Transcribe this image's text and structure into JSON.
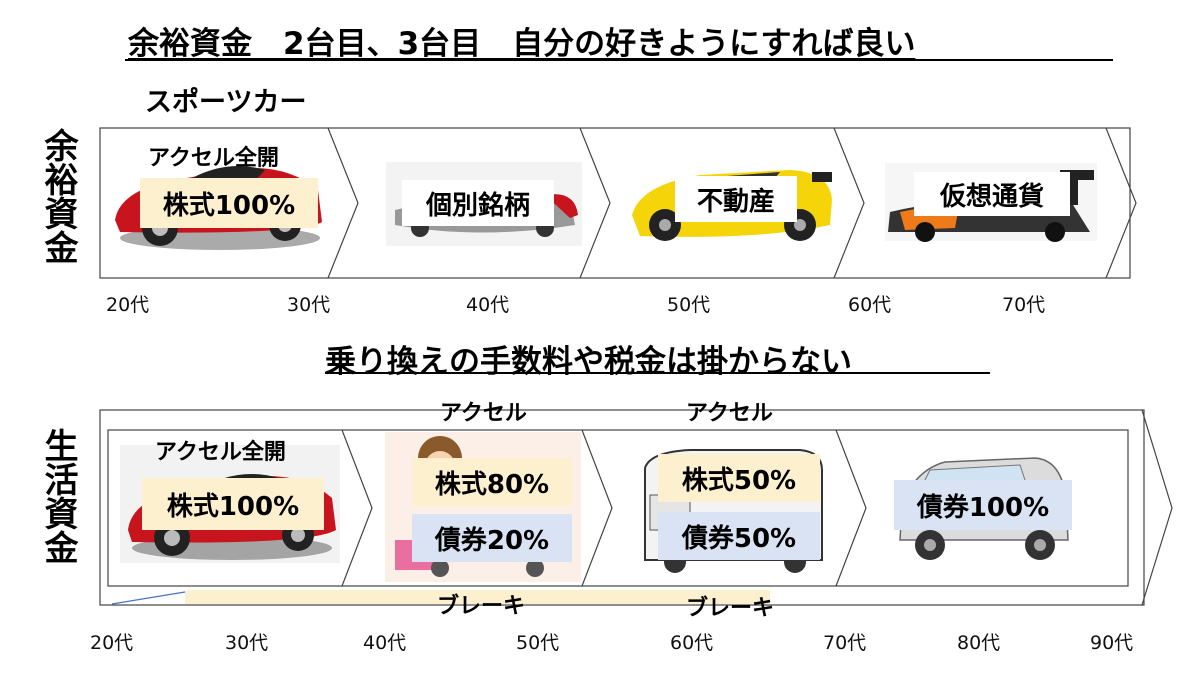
{
  "top_title": "余裕資金　2台目、3台目　自分の好きようにすれば良い",
  "sports_car_label": "スポーツカー",
  "surplus_label": "余裕資金",
  "living_label": "生活資金",
  "middle_title": "乗り換えの手数料や税金は掛からない",
  "surplus_stages": [
    {
      "header": "アクセル全開",
      "box": "株式100%"
    },
    {
      "box": "個別銘柄"
    },
    {
      "box": "不動産"
    },
    {
      "box": "仮想通貨"
    }
  ],
  "surplus_ages": [
    "20代",
    "30代",
    "40代",
    "50代",
    "60代",
    "70代"
  ],
  "living_stages": [
    {
      "header": "アクセル全開",
      "boxes": [
        "株式100%"
      ]
    },
    {
      "header": "アクセル",
      "boxes": [
        "株式80%",
        "債券20%"
      ]
    },
    {
      "header": "アクセル",
      "boxes": [
        "株式50%",
        "債券50%"
      ]
    },
    {
      "boxes": [
        "債券100%"
      ]
    }
  ],
  "brake_labels": [
    "ブレーキ",
    "ブレーキ"
  ],
  "living_ages": [
    "20代",
    "30代",
    "40代",
    "50代",
    "60代",
    "70代",
    "80代",
    "90代"
  ],
  "colors": {
    "yellow_box": "#fdf0cf",
    "blue_box": "#dae3f3",
    "car_red": "#c8141c",
    "car_yellow": "#f5d40a",
    "car_orange": "#ee7a1a"
  }
}
